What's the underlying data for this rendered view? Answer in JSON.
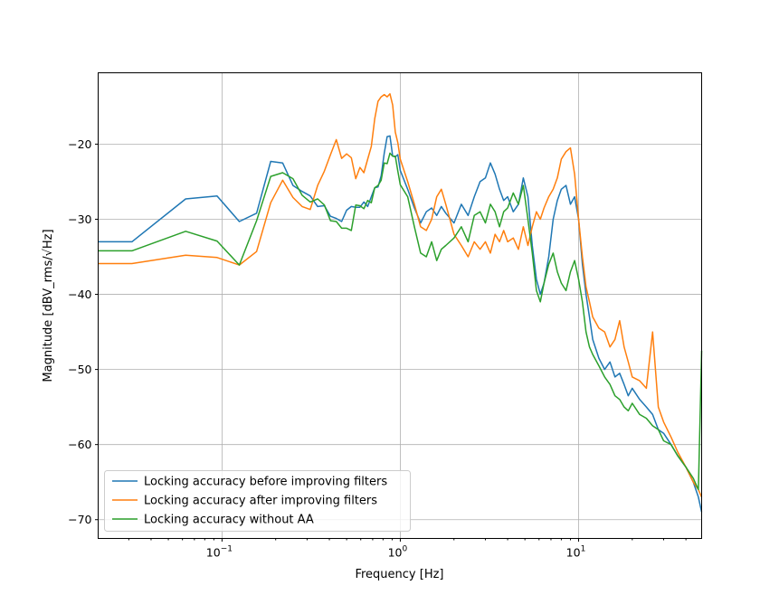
{
  "chart_data": {
    "type": "line",
    "title": "",
    "xlabel": "Frequency [Hz]",
    "ylabel": "Magnitude [dBV_rms/√Hz]",
    "xscale": "log",
    "xlim": [
      0.0202,
      49
    ],
    "ylim": [
      -72.5,
      -10.5
    ],
    "grid": true,
    "legend_position": "lower-left",
    "yticks": [
      -20,
      -30,
      -40,
      -50,
      -60,
      -70
    ],
    "ytick_labels": [
      "−20",
      "−30",
      "−40",
      "−50",
      "−60",
      "−70"
    ],
    "xticks": [
      0.1,
      1,
      10
    ],
    "xtick_labels": [
      {
        "base": "10",
        "exp": "−1"
      },
      {
        "base": "10",
        "exp": "0"
      },
      {
        "base": "10",
        "exp": "1"
      }
    ],
    "x": [
      0.0202,
      0.03125,
      0.0625,
      0.09375,
      0.125,
      0.15625,
      0.1875,
      0.21875,
      0.25,
      0.28125,
      0.3125,
      0.34375,
      0.375,
      0.40625,
      0.4375,
      0.46875,
      0.5,
      0.53125,
      0.5625,
      0.59375,
      0.625,
      0.65625,
      0.6875,
      0.71875,
      0.75,
      0.78125,
      0.8125,
      0.84375,
      0.875,
      0.90625,
      0.9375,
      0.96875,
      1.0,
      1.1,
      1.2,
      1.3,
      1.4,
      1.5,
      1.6,
      1.7,
      1.8,
      2.0,
      2.2,
      2.4,
      2.6,
      2.8,
      3.0,
      3.2,
      3.4,
      3.6,
      3.8,
      4.0,
      4.3,
      4.6,
      4.9,
      5.2,
      5.5,
      5.8,
      6.1,
      6.4,
      6.8,
      7.2,
      7.6,
      8.0,
      8.5,
      9.0,
      9.5,
      10,
      10.5,
      11,
      11.5,
      12,
      13,
      14,
      15,
      16,
      17,
      18,
      19,
      20,
      22,
      24,
      26,
      28,
      30,
      33,
      36,
      40,
      44,
      47,
      49
    ],
    "series": [
      {
        "name": "Locking accuracy before improving filters",
        "color": "#1f77b4",
        "values": [
          -33,
          -33,
          -27.3,
          -26.9,
          -30.3,
          -29.2,
          -22.3,
          -22.5,
          -25.5,
          -26.3,
          -26.9,
          -28.3,
          -28.2,
          -29.6,
          -29.9,
          -30.3,
          -28.8,
          -28.3,
          -28.4,
          -28.4,
          -27.7,
          -28.3,
          -27.0,
          -25.8,
          -25.7,
          -24.2,
          -21.2,
          -19.0,
          -18.9,
          -21.6,
          -21.7,
          -21.4,
          -23.5,
          -26,
          -28.5,
          -30.5,
          -29,
          -28.5,
          -29.5,
          -28.3,
          -29.2,
          -30.5,
          -28,
          -29.5,
          -27,
          -25,
          -24.5,
          -22.5,
          -24,
          -26,
          -27.5,
          -27,
          -29,
          -28,
          -24.5,
          -27,
          -33.5,
          -38,
          -40,
          -38.5,
          -35,
          -30,
          -27.5,
          -26,
          -25.5,
          -28,
          -27,
          -30,
          -36,
          -40,
          -43,
          -46,
          -48.5,
          -50,
          -49,
          -51,
          -50.5,
          -52,
          -53.5,
          -52.5,
          -54,
          -55,
          -56,
          -58,
          -58.5,
          -60,
          -61.5,
          -63,
          -65,
          -67,
          -69
        ]
      },
      {
        "name": "Locking accuracy after improving filters",
        "color": "#ff7f0e",
        "values": [
          -35.9,
          -35.9,
          -34.8,
          -35.1,
          -36.1,
          -34.3,
          -27.8,
          -24.8,
          -27.1,
          -28.3,
          -28.7,
          -25.5,
          -23.6,
          -21.4,
          -19.4,
          -21.9,
          -21.3,
          -21.8,
          -24.6,
          -23.1,
          -23.8,
          -22.0,
          -20.3,
          -16.6,
          -14.3,
          -13.7,
          -13.4,
          -13.7,
          -13.3,
          -14.8,
          -18.4,
          -19.8,
          -22.0,
          -25,
          -28,
          -31,
          -31.5,
          -30,
          -27,
          -26,
          -28,
          -32,
          -33.5,
          -35,
          -33,
          -34,
          -33,
          -34.5,
          -32,
          -33,
          -31.5,
          -33,
          -32.5,
          -34,
          -31,
          -33.5,
          -31,
          -29,
          -30,
          -28.5,
          -27,
          -26,
          -24.5,
          -22,
          -21,
          -20.5,
          -24,
          -30,
          -35,
          -39,
          -41,
          -43,
          -44.5,
          -45,
          -47,
          -46,
          -43.5,
          -47,
          -49,
          -51,
          -51.5,
          -52.5,
          -45,
          -55,
          -57,
          -59,
          -61,
          -63,
          -65,
          -66,
          -67
        ]
      },
      {
        "name": "Locking accuracy without AA",
        "color": "#2ca02c",
        "values": [
          -34.2,
          -34.2,
          -31.6,
          -32.9,
          -36.1,
          -30.2,
          -24.3,
          -23.8,
          -24.6,
          -26.8,
          -27.7,
          -27.3,
          -28.1,
          -30.2,
          -30.3,
          -31.2,
          -31.2,
          -31.5,
          -28.1,
          -28.2,
          -28.6,
          -27.5,
          -27.8,
          -25.8,
          -25.5,
          -24.8,
          -22.5,
          -22.6,
          -21.2,
          -21.6,
          -21.6,
          -23.6,
          -25.4,
          -27,
          -31,
          -34.5,
          -35,
          -33,
          -35.5,
          -34,
          -33.5,
          -32.5,
          -31,
          -33,
          -29.5,
          -29,
          -30.5,
          -28,
          -29,
          -31,
          -29,
          -28.5,
          -26.5,
          -28,
          -25.5,
          -30,
          -34.5,
          -39.5,
          -41,
          -38.5,
          -36,
          -34.5,
          -37,
          -38.5,
          -39.5,
          -37,
          -35.5,
          -38,
          -41,
          -45,
          -47,
          -48,
          -49.5,
          -51,
          -52,
          -53.5,
          -54,
          -55,
          -55.5,
          -54.5,
          -56,
          -56.5,
          -57.5,
          -58,
          -59.5,
          -60,
          -61.5,
          -63,
          -64.5,
          -66,
          -47.5
        ]
      }
    ]
  }
}
